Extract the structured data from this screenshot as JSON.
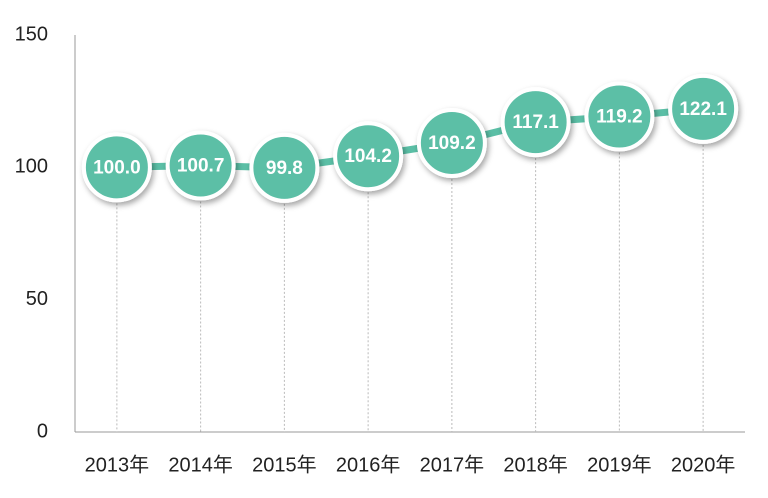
{
  "chart_data": {
    "type": "line",
    "categories": [
      "2013年",
      "2014年",
      "2015年",
      "2016年",
      "2017年",
      "2018年",
      "2019年",
      "2020年"
    ],
    "values": [
      100.0,
      100.7,
      99.8,
      104.2,
      109.2,
      117.1,
      119.2,
      122.1
    ],
    "value_labels": [
      "100.0",
      "100.7",
      "99.8",
      "104.2",
      "109.2",
      "117.1",
      "119.2",
      "122.1"
    ],
    "color": "#5bbfa6",
    "ylim": [
      0,
      150
    ],
    "yticks": [
      0,
      50,
      100,
      150
    ]
  }
}
